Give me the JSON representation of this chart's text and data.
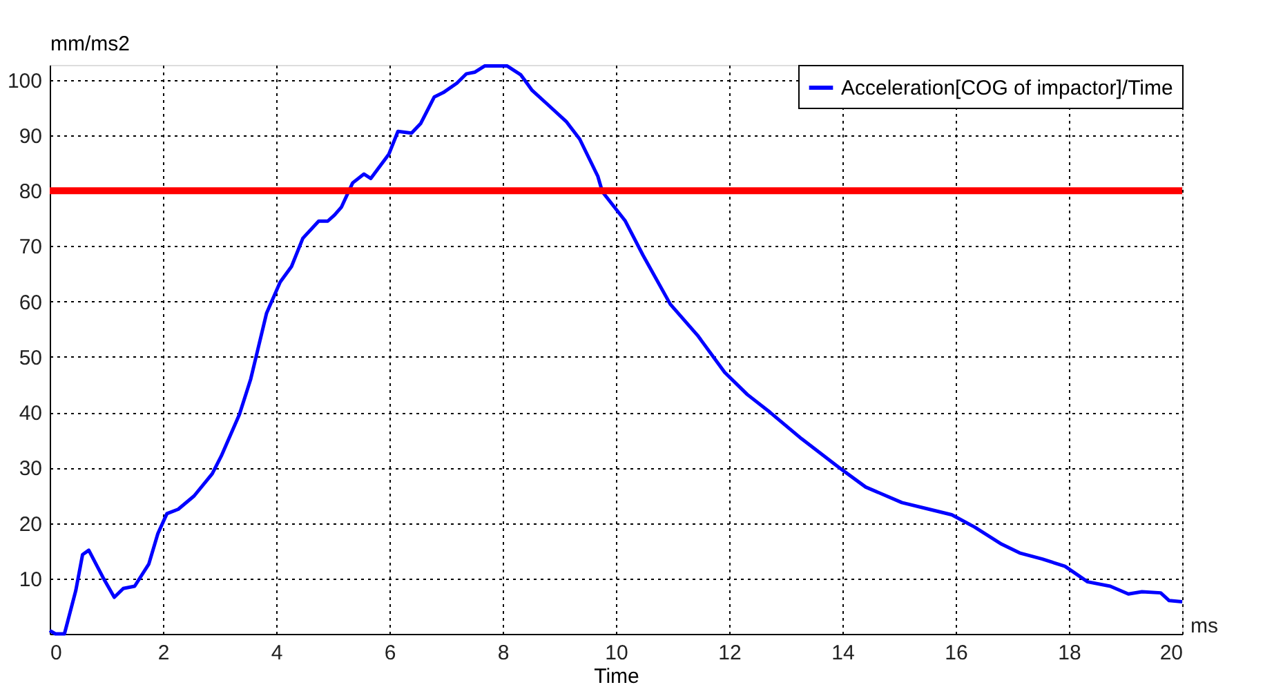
{
  "chart_data": {
    "type": "line",
    "xlabel": "Time",
    "ylabel": "mm/ms2",
    "annotations": [
      "ms"
    ],
    "xlim": [
      0,
      20
    ],
    "xticks": [
      0,
      2,
      4,
      6,
      8,
      10,
      12,
      14,
      16,
      18,
      20
    ],
    "ylim": [
      0,
      102.7
    ],
    "yticks": [
      {
        "value": 0,
        "label": null
      },
      10,
      20,
      30,
      40,
      50,
      60,
      70,
      80,
      90,
      100
    ],
    "grid": true,
    "legend": "top right",
    "line_style": "solid",
    "marker": "none",
    "ref_lines": [
      {
        "axis": "y",
        "value": 80,
        "color": "#ff0000"
      }
    ],
    "series": [
      {
        "name": "Acceleration[COG of impactor]/Time",
        "color": "#0000ff",
        "x": [
          0,
          0.1,
          0.26,
          0.46,
          0.58,
          0.69,
          0.94,
          1.14,
          1.3,
          1.5,
          1.75,
          1.91,
          2.07,
          2.27,
          2.55,
          2.87,
          3.03,
          3.35,
          3.55,
          3.83,
          4.07,
          4.27,
          4.47,
          4.75,
          4.91,
          5.03,
          5.15,
          5.35,
          5.55,
          5.67,
          5.99,
          6.15,
          6.39,
          6.55,
          6.79,
          6.95,
          7.19,
          7.36,
          7.51,
          7.68,
          8.08,
          8.32,
          8.52,
          8.8,
          9.12,
          9.36,
          9.68,
          9.76,
          10.16,
          10.48,
          10.96,
          11.44,
          11.92,
          12.32,
          12.72,
          13.28,
          13.93,
          14.41,
          15.05,
          15.53,
          15.93,
          16.33,
          16.81,
          17.13,
          17.53,
          17.93,
          18.33,
          18.73,
          19.05,
          19.29,
          19.62,
          19.77,
          20
        ],
        "values": [
          0.6,
          0,
          0,
          7.8,
          14.3,
          15.1,
          10.2,
          6.6,
          8.2,
          8.6,
          12.6,
          18.1,
          21.7,
          22.5,
          24.9,
          28.9,
          32.1,
          39.6,
          46,
          57.9,
          63.5,
          66.3,
          71.4,
          74.5,
          74.5,
          75.6,
          77,
          81.4,
          83,
          82.2,
          86.6,
          90.7,
          90.4,
          92.1,
          96.9,
          97.7,
          99.4,
          101.1,
          101.4,
          102.5,
          102.5,
          100.9,
          98.1,
          95.5,
          92.5,
          89.3,
          82.6,
          79.8,
          74.6,
          68.3,
          59.5,
          53.9,
          47.2,
          43.2,
          40,
          35.2,
          30.1,
          26.5,
          23.7,
          22.5,
          21.5,
          19.3,
          16.2,
          14.6,
          13.5,
          12.2,
          9.4,
          8.6,
          7.2,
          7.6,
          7.4,
          6,
          5.8
        ]
      }
    ]
  }
}
